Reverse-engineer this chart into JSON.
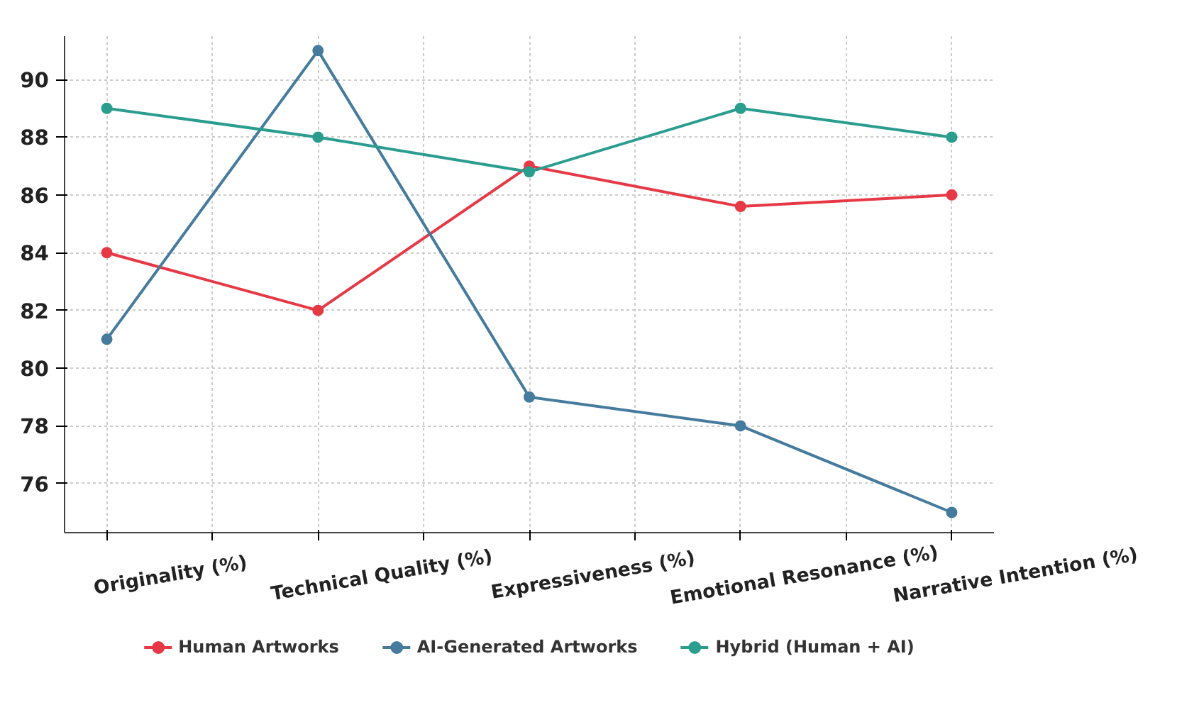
{
  "chart_data": {
    "type": "line",
    "categories": [
      "Originality (%)",
      "Technical Quality (%)",
      "Expressiveness (%)",
      "Emotional Resonance (%)",
      "Narrative Intention (%)"
    ],
    "series": [
      {
        "name": "Human Artworks",
        "color": "#e63946",
        "values": [
          84,
          82,
          87,
          85.6,
          86
        ]
      },
      {
        "name": "AI-Generated Artworks",
        "color": "#457b9d",
        "values": [
          81,
          91,
          79,
          78,
          75
        ]
      },
      {
        "name": "Hybrid (Human + AI)",
        "color": "#2a9d8f",
        "values": [
          89,
          88,
          86.8,
          89,
          88
        ]
      }
    ],
    "ylim": [
      74.3,
      91.5
    ],
    "yticks": [
      76,
      78,
      80,
      82,
      84,
      86,
      88,
      90
    ],
    "grid": true,
    "legend": "bottom",
    "marker": "circle",
    "line_style": "solid"
  }
}
